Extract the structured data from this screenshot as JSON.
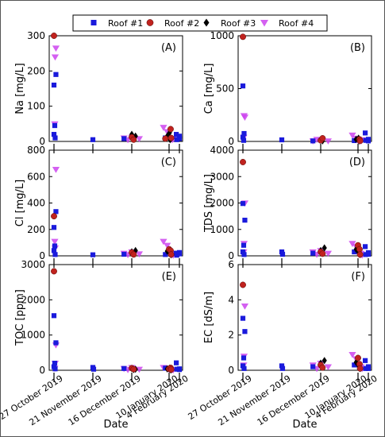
{
  "figure": {
    "legend": [
      {
        "name": "Roof #1",
        "color": "#1a1adc",
        "marker": "square"
      },
      {
        "name": "Roof #2",
        "color": "#c0221e",
        "marker": "circle"
      },
      {
        "name": "Roof #3",
        "color": "#000000",
        "marker": "diamond"
      },
      {
        "name": "Roof #4",
        "color": "#cc44ee",
        "marker": "triangle-down"
      }
    ],
    "xlabel": "Date",
    "x_tick_labels": [
      "27 October 2019",
      "21 November 2019",
      "16 December 2019",
      "10 January 2020",
      "4 February 2020"
    ]
  },
  "chart_data": [
    {
      "type": "scatter",
      "panel": "(A)",
      "ylabel": "Na [mg/L]",
      "ylim": [
        0,
        300
      ],
      "yticks": [
        0,
        100,
        200,
        300
      ],
      "x_categories": [
        "27 October 2019",
        "21 November 2019",
        "16 December 2019",
        "10 January 2020",
        "4 February 2020"
      ],
      "series": [
        {
          "name": "Roof #1",
          "points": [
            [
              0.0,
              160
            ],
            [
              0.05,
              190
            ],
            [
              0.02,
              45
            ],
            [
              0.0,
              20
            ],
            [
              0.03,
              10
            ],
            [
              1.0,
              5
            ],
            [
              1.8,
              8
            ],
            [
              2.9,
              10
            ],
            [
              3.7,
              20
            ],
            [
              3.75,
              5
            ],
            [
              4.8,
              8
            ],
            [
              4.9,
              15
            ]
          ]
        },
        {
          "name": "Roof #2",
          "points": [
            [
              0.0,
              300
            ],
            [
              2.0,
              12
            ],
            [
              2.05,
              5
            ],
            [
              2.9,
              8
            ],
            [
              3.15,
              35
            ],
            [
              3.2,
              10
            ]
          ]
        },
        {
          "name": "Roof #3",
          "points": [
            [
              2.0,
              20
            ],
            [
              2.05,
              8
            ],
            [
              2.1,
              15
            ],
            [
              2.95,
              15
            ],
            [
              3.05,
              25
            ],
            [
              3.1,
              5
            ],
            [
              3.2,
              8
            ]
          ]
        },
        {
          "name": "Roof #4",
          "points": [
            [
              0.03,
              240
            ],
            [
              0.02,
              50
            ],
            [
              0.05,
              265
            ],
            [
              1.8,
              10
            ],
            [
              1.9,
              5
            ],
            [
              2.0,
              12
            ],
            [
              2.2,
              8
            ],
            [
              2.85,
              40
            ],
            [
              2.95,
              28
            ],
            [
              3.0,
              10
            ],
            [
              3.3,
              5
            ],
            [
              3.4,
              8
            ]
          ]
        }
      ]
    },
    {
      "type": "scatter",
      "panel": "(B)",
      "ylabel": "Ca [mg/L]",
      "ylim": [
        0,
        1000
      ],
      "yticks": [
        0,
        500,
        1000
      ],
      "x_categories": [
        "27 October 2019",
        "21 November 2019",
        "16 December 2019",
        "10 January 2020",
        "4 February 2020"
      ],
      "series": [
        {
          "name": "Roof #1",
          "points": [
            [
              0.0,
              525
            ],
            [
              0.03,
              75
            ],
            [
              0.0,
              40
            ],
            [
              0.02,
              10
            ],
            [
              1.0,
              15
            ],
            [
              1.8,
              5
            ],
            [
              2.9,
              8
            ],
            [
              3.7,
              80
            ],
            [
              3.75,
              10
            ],
            [
              4.8,
              5
            ],
            [
              4.9,
              20
            ]
          ]
        },
        {
          "name": "Roof #2",
          "points": [
            [
              0.0,
              990
            ],
            [
              2.0,
              10
            ],
            [
              2.05,
              30
            ],
            [
              3.15,
              20
            ],
            [
              3.2,
              5
            ]
          ]
        },
        {
          "name": "Roof #3",
          "points": [
            [
              2.0,
              15
            ],
            [
              2.05,
              5
            ],
            [
              2.95,
              20
            ],
            [
              3.05,
              30
            ],
            [
              3.1,
              5
            ]
          ]
        },
        {
          "name": "Roof #4",
          "points": [
            [
              0.03,
              245
            ],
            [
              0.05,
              230
            ],
            [
              0.02,
              40
            ],
            [
              1.8,
              5
            ],
            [
              1.9,
              20
            ],
            [
              2.0,
              10
            ],
            [
              2.2,
              5
            ],
            [
              2.85,
              60
            ],
            [
              2.95,
              30
            ],
            [
              3.0,
              10
            ],
            [
              3.3,
              5
            ],
            [
              3.4,
              15
            ]
          ]
        }
      ]
    },
    {
      "type": "scatter",
      "panel": "(C)",
      "ylabel": "Cl [mg/L]",
      "ylim": [
        0,
        800
      ],
      "yticks": [
        0,
        200,
        400,
        600,
        800
      ],
      "x_categories": [
        "27 October 2019",
        "21 November 2019",
        "16 December 2019",
        "10 January 2020",
        "4 February 2020"
      ],
      "series": [
        {
          "name": "Roof #1",
          "points": [
            [
              0.0,
              215
            ],
            [
              0.05,
              335
            ],
            [
              0.02,
              75
            ],
            [
              0.0,
              40
            ],
            [
              0.03,
              10
            ],
            [
              1.0,
              8
            ],
            [
              1.8,
              12
            ],
            [
              2.9,
              10
            ],
            [
              3.7,
              20
            ],
            [
              3.75,
              5
            ],
            [
              4.8,
              15
            ],
            [
              4.9,
              25
            ]
          ]
        },
        {
          "name": "Roof #2",
          "points": [
            [
              0.0,
              300
            ],
            [
              2.0,
              25
            ],
            [
              2.05,
              10
            ],
            [
              3.0,
              50
            ],
            [
              3.15,
              40
            ],
            [
              3.2,
              10
            ]
          ]
        },
        {
          "name": "Roof #3",
          "points": [
            [
              2.0,
              30
            ],
            [
              2.05,
              15
            ],
            [
              2.1,
              40
            ],
            [
              2.95,
              35
            ],
            [
              3.05,
              20
            ],
            [
              3.1,
              45
            ],
            [
              3.2,
              8
            ]
          ]
        },
        {
          "name": "Roof #4",
          "points": [
            [
              0.05,
              655
            ],
            [
              0.02,
              110
            ],
            [
              0.03,
              60
            ],
            [
              1.8,
              20
            ],
            [
              1.9,
              10
            ],
            [
              2.0,
              30
            ],
            [
              2.2,
              15
            ],
            [
              2.85,
              110
            ],
            [
              2.95,
              80
            ],
            [
              3.0,
              30
            ],
            [
              3.3,
              20
            ],
            [
              3.4,
              5
            ]
          ]
        }
      ]
    },
    {
      "type": "scatter",
      "panel": "(D)",
      "ylabel": "TDS [mg/L]",
      "ylim": [
        0,
        4000
      ],
      "yticks": [
        0,
        1000,
        2000,
        3000,
        4000
      ],
      "x_categories": [
        "27 October 2019",
        "21 November 2019",
        "16 December 2019",
        "10 January 2020",
        "4 February 2020"
      ],
      "series": [
        {
          "name": "Roof #1",
          "points": [
            [
              0.0,
              1980
            ],
            [
              0.05,
              1350
            ],
            [
              0.02,
              400
            ],
            [
              0.0,
              150
            ],
            [
              0.03,
              50
            ],
            [
              1.0,
              150
            ],
            [
              1.02,
              60
            ],
            [
              1.8,
              100
            ],
            [
              2.9,
              150
            ],
            [
              3.7,
              350
            ],
            [
              3.75,
              50
            ],
            [
              4.8,
              60
            ],
            [
              4.9,
              120
            ]
          ]
        },
        {
          "name": "Roof #2",
          "points": [
            [
              0.0,
              3550
            ],
            [
              2.0,
              150
            ],
            [
              2.05,
              80
            ],
            [
              3.0,
              400
            ],
            [
              3.15,
              250
            ],
            [
              3.2,
              50
            ]
          ]
        },
        {
          "name": "Roof #3",
          "points": [
            [
              2.0,
              200
            ],
            [
              2.05,
              100
            ],
            [
              2.1,
              300
            ],
            [
              2.95,
              250
            ],
            [
              3.05,
              150
            ],
            [
              3.1,
              100
            ],
            [
              3.2,
              50
            ]
          ]
        },
        {
          "name": "Roof #4",
          "points": [
            [
              0.05,
              2000
            ],
            [
              0.03,
              470
            ],
            [
              0.02,
              150
            ],
            [
              1.8,
              150
            ],
            [
              1.9,
              60
            ],
            [
              2.0,
              200
            ],
            [
              2.2,
              100
            ],
            [
              2.85,
              470
            ],
            [
              2.95,
              350
            ],
            [
              3.0,
              150
            ],
            [
              3.3,
              100
            ],
            [
              3.4,
              30
            ]
          ]
        }
      ]
    },
    {
      "type": "scatter",
      "panel": "(E)",
      "ylabel": "TOC [ppm]",
      "ylim": [
        0,
        3000
      ],
      "yticks": [
        0,
        1000,
        2000,
        3000
      ],
      "x_categories": [
        "27 October 2019",
        "21 November 2019",
        "16 December 2019",
        "10 January 2020",
        "4 February 2020"
      ],
      "series": [
        {
          "name": "Roof #1",
          "points": [
            [
              0.0,
              1550
            ],
            [
              0.05,
              780
            ],
            [
              0.02,
              200
            ],
            [
              0.0,
              100
            ],
            [
              0.03,
              40
            ],
            [
              1.0,
              80
            ],
            [
              1.02,
              30
            ],
            [
              1.8,
              50
            ],
            [
              2.9,
              60
            ],
            [
              3.7,
              210
            ],
            [
              3.75,
              30
            ],
            [
              4.8,
              40
            ],
            [
              4.9,
              20
            ]
          ]
        },
        {
          "name": "Roof #2",
          "points": [
            [
              0.0,
              2810
            ],
            [
              2.0,
              60
            ],
            [
              2.05,
              30
            ],
            [
              3.0,
              40
            ],
            [
              3.15,
              70
            ],
            [
              3.2,
              20
            ]
          ]
        },
        {
          "name": "Roof #3",
          "points": [
            [
              2.0,
              50
            ],
            [
              2.05,
              20
            ],
            [
              2.1,
              30
            ],
            [
              2.95,
              40
            ],
            [
              3.05,
              60
            ],
            [
              3.1,
              20
            ],
            [
              3.2,
              10
            ]
          ]
        },
        {
          "name": "Roof #4",
          "points": [
            [
              0.05,
              720
            ],
            [
              0.03,
              200
            ],
            [
              0.02,
              60
            ],
            [
              1.8,
              50
            ],
            [
              1.9,
              20
            ],
            [
              2.0,
              80
            ],
            [
              2.2,
              30
            ],
            [
              2.85,
              80
            ],
            [
              2.95,
              50
            ],
            [
              3.0,
              30
            ],
            [
              3.3,
              20
            ],
            [
              3.4,
              10
            ]
          ]
        }
      ]
    },
    {
      "type": "scatter",
      "panel": "(F)",
      "ylabel": "EC [dS/m]",
      "ylim": [
        0,
        6
      ],
      "yticks": [
        0,
        2,
        4,
        6
      ],
      "x_categories": [
        "27 October 2019",
        "21 November 2019",
        "16 December 2019",
        "10 January 2020",
        "4 February 2020"
      ],
      "series": [
        {
          "name": "Roof #1",
          "points": [
            [
              0.0,
              2.95
            ],
            [
              0.05,
              2.2
            ],
            [
              0.02,
              0.7
            ],
            [
              0.0,
              0.25
            ],
            [
              0.03,
              0.1
            ],
            [
              1.0,
              0.25
            ],
            [
              1.02,
              0.1
            ],
            [
              1.8,
              0.2
            ],
            [
              2.9,
              0.3
            ],
            [
              3.7,
              0.55
            ],
            [
              3.75,
              0.1
            ],
            [
              4.8,
              0.1
            ],
            [
              4.9,
              0.2
            ]
          ]
        },
        {
          "name": "Roof #2",
          "points": [
            [
              0.0,
              4.85
            ],
            [
              2.0,
              0.3
            ],
            [
              2.05,
              0.15
            ],
            [
              3.0,
              0.7
            ],
            [
              3.15,
              0.35
            ],
            [
              3.2,
              0.1
            ]
          ]
        },
        {
          "name": "Roof #3",
          "points": [
            [
              2.0,
              0.4
            ],
            [
              2.05,
              0.2
            ],
            [
              2.1,
              0.55
            ],
            [
              2.95,
              0.45
            ],
            [
              3.05,
              0.3
            ],
            [
              3.1,
              0.2
            ],
            [
              3.2,
              0.1
            ]
          ]
        },
        {
          "name": "Roof #4",
          "points": [
            [
              0.05,
              3.65
            ],
            [
              0.03,
              0.8
            ],
            [
              0.02,
              0.3
            ],
            [
              1.8,
              0.3
            ],
            [
              1.9,
              0.1
            ],
            [
              2.0,
              0.4
            ],
            [
              2.2,
              0.2
            ],
            [
              2.85,
              0.9
            ],
            [
              2.95,
              0.65
            ],
            [
              3.0,
              0.3
            ],
            [
              3.3,
              0.2
            ],
            [
              3.4,
              0.1
            ]
          ]
        }
      ]
    }
  ]
}
